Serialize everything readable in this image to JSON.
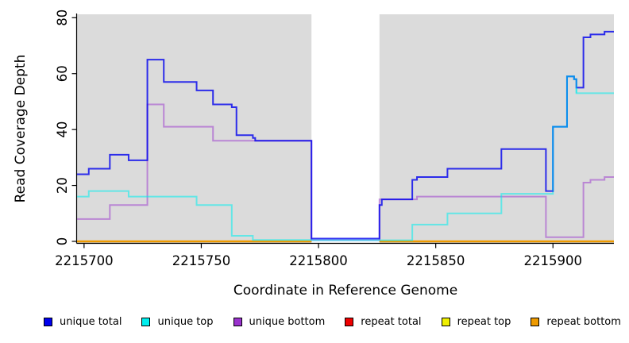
{
  "chart_data": {
    "type": "line",
    "subtype": "step",
    "title": "",
    "xlabel": "Coordinate in Reference Genome",
    "ylabel": "Read Coverage Depth",
    "xlim": [
      2215697,
      2215926
    ],
    "ylim": [
      0,
      80
    ],
    "x_ticks": [
      {
        "value": 2215700,
        "label": "2215700"
      },
      {
        "value": 2215750,
        "label": "2215750"
      },
      {
        "value": 2215800,
        "label": "2215800"
      },
      {
        "value": 2215850,
        "label": "2215850"
      },
      {
        "value": 2215900,
        "label": "2215900"
      }
    ],
    "y_ticks": [
      {
        "value": 0,
        "label": "0"
      },
      {
        "value": 20,
        "label": "20"
      },
      {
        "value": 40,
        "label": "40"
      },
      {
        "value": 60,
        "label": "60"
      },
      {
        "value": 80,
        "label": "80"
      }
    ],
    "panel_shade_color": "#dbdbdb",
    "shaded_regions": [
      {
        "start": 2215697,
        "end": 2215797
      },
      {
        "start": 2215826,
        "end": 2215926
      }
    ],
    "gap_region": {
      "start": 2215797,
      "end": 2215826
    },
    "series": [
      {
        "name": "repeat total",
        "color": "#EE0000",
        "opacity": 1,
        "width": 2,
        "level": 0,
        "ranges": [
          [
            2215697,
            2215797
          ],
          [
            2215826,
            2215926
          ]
        ]
      },
      {
        "name": "repeat top",
        "color": "#EEEE00",
        "opacity": 1,
        "width": 2,
        "level": 0,
        "ranges": [
          [
            2215697,
            2215797
          ],
          [
            2215826,
            2215926
          ]
        ]
      },
      {
        "name": "repeat bottom",
        "color": "#EE9A00",
        "opacity": 1,
        "width": 2.4,
        "level": 0,
        "ranges": [
          [
            2215697,
            2215797
          ],
          [
            2215826,
            2215926
          ]
        ]
      },
      {
        "name": "unique bottom",
        "color": "#9A32CD",
        "opacity": 0.5,
        "width": 2,
        "steps": [
          [
            2215697,
            8
          ],
          [
            2215711,
            13
          ],
          [
            2215727,
            49
          ],
          [
            2215734,
            41
          ],
          [
            2215755,
            36
          ],
          [
            2215797,
            0.4
          ],
          [
            2215826,
            15
          ],
          [
            2215842,
            16
          ],
          [
            2215897,
            1.5
          ],
          [
            2215913,
            21
          ],
          [
            2215916,
            22
          ],
          [
            2215922,
            23
          ]
        ]
      },
      {
        "name": "unique top",
        "color": "#00EEEE",
        "opacity": 0.55,
        "width": 2,
        "steps": [
          [
            2215697,
            16
          ],
          [
            2215702,
            18
          ],
          [
            2215719,
            16
          ],
          [
            2215748,
            13
          ],
          [
            2215763,
            2
          ],
          [
            2215772,
            0.5
          ],
          [
            2215797,
            0.4
          ],
          [
            2215840,
            6
          ],
          [
            2215855,
            10
          ],
          [
            2215878,
            17
          ],
          [
            2215900,
            41
          ],
          [
            2215906,
            59
          ],
          [
            2215909,
            58
          ],
          [
            2215910,
            53
          ]
        ]
      },
      {
        "name": "unique total",
        "color": "#0000EE",
        "opacity": 0.8,
        "width": 2,
        "steps": [
          [
            2215697,
            24
          ],
          [
            2215702,
            26
          ],
          [
            2215711,
            31
          ],
          [
            2215719,
            29
          ],
          [
            2215727,
            65
          ],
          [
            2215734,
            57
          ],
          [
            2215748,
            54
          ],
          [
            2215755,
            49
          ],
          [
            2215763,
            48
          ],
          [
            2215765,
            38
          ],
          [
            2215772,
            37
          ],
          [
            2215773,
            36
          ],
          [
            2215797,
            1
          ],
          [
            2215826,
            13
          ],
          [
            2215827,
            15
          ],
          [
            2215840,
            22
          ],
          [
            2215842,
            23
          ],
          [
            2215855,
            26
          ],
          [
            2215878,
            33
          ],
          [
            2215897,
            18
          ],
          [
            2215900,
            41
          ],
          [
            2215906,
            59
          ],
          [
            2215909,
            58
          ],
          [
            2215910,
            55
          ],
          [
            2215913,
            73
          ],
          [
            2215916,
            74
          ],
          [
            2215922,
            75
          ]
        ]
      },
      {
        "name": "unique top overlap",
        "color": "#00EEEE",
        "opacity": 0.5,
        "width": 2,
        "end": 2215910,
        "steps": [
          [
            2215900,
            18
          ],
          [
            2215900,
            41
          ],
          [
            2215906,
            59
          ],
          [
            2215909,
            58
          ],
          [
            2215910,
            53
          ]
        ]
      }
    ],
    "legend_position": "bottom"
  },
  "legend": {
    "items": [
      {
        "label": "unique total",
        "color": "#0000EE"
      },
      {
        "label": "unique top",
        "color": "#00EEEE"
      },
      {
        "label": "unique bottom",
        "color": "#9A32CD"
      },
      {
        "label": "repeat total",
        "color": "#EE0000"
      },
      {
        "label": "repeat top",
        "color": "#EEEE00"
      },
      {
        "label": "repeat bottom",
        "color": "#EE9A00"
      }
    ]
  }
}
